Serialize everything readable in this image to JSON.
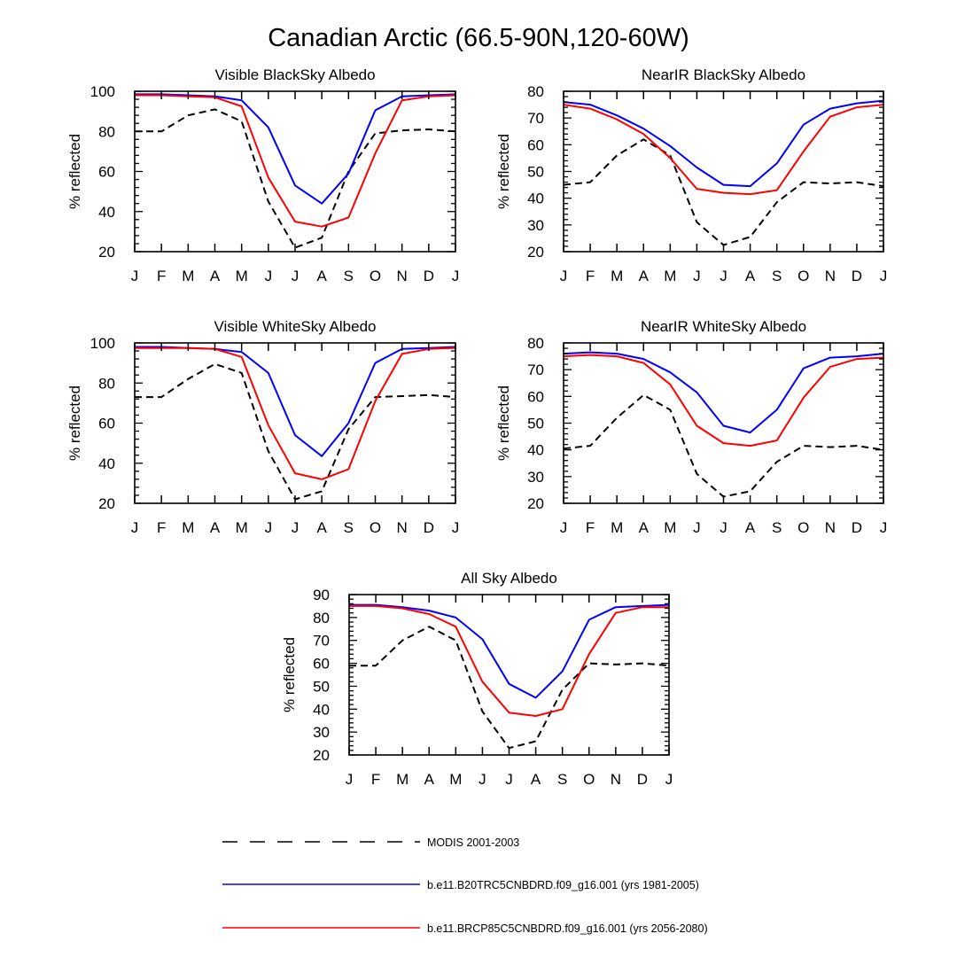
{
  "title": "Canadian Arctic (66.5-90N,120-60W)",
  "colors": {
    "modis": "#000000",
    "hist": "#0000ff",
    "rcp": "#ff0000"
  },
  "legend": [
    {
      "label": "MODIS 2001-2003",
      "style": "dashed",
      "color": "#000000"
    },
    {
      "label": "b.e11.B20TRC5CNBDRD.f09_g16.001 (yrs 1981-2005)",
      "style": "solid",
      "color": "#0000ff"
    },
    {
      "label": "b.e11.BRCP85C5CNBDRD.f09_g16.001 (yrs 2056-2080)",
      "style": "solid",
      "color": "#ff0000"
    }
  ],
  "chart_data": [
    {
      "type": "line",
      "title": "Visible BlackSky Albedo",
      "xlabel": "",
      "ylabel": "% reflected",
      "categories": [
        "J",
        "F",
        "M",
        "A",
        "M",
        "J",
        "J",
        "A",
        "S",
        "O",
        "N",
        "D",
        "J"
      ],
      "ylim": [
        20,
        100
      ],
      "yticks": [
        20,
        40,
        60,
        80,
        100
      ],
      "series": [
        {
          "name": "MODIS 2001-2003",
          "values": [
            80,
            80,
            88,
            91,
            85,
            45,
            22,
            27,
            60,
            79,
            80.5,
            81,
            80
          ]
        },
        {
          "name": "b.e11.B20TRC5CNBDRD.f09_g16.001 (yrs 1981-2005)",
          "values": [
            98.5,
            98.5,
            98,
            97.5,
            95.5,
            82,
            53,
            44,
            59,
            90.5,
            97.5,
            98,
            98.5
          ]
        },
        {
          "name": "b.e11.BRCP85C5CNBDRD.f09_g16.001 (yrs 2056-2080)",
          "values": [
            98,
            98,
            97.5,
            97,
            92.5,
            57,
            35,
            32.5,
            37,
            69,
            95.5,
            97.5,
            98
          ]
        }
      ]
    },
    {
      "type": "line",
      "title": "NearIR BlackSky Albedo",
      "xlabel": "",
      "ylabel": "% reflected",
      "categories": [
        "J",
        "F",
        "M",
        "A",
        "M",
        "J",
        "J",
        "A",
        "S",
        "O",
        "N",
        "D",
        "J"
      ],
      "ylim": [
        20,
        80
      ],
      "yticks": [
        20,
        30,
        40,
        50,
        60,
        70,
        80
      ],
      "series": [
        {
          "name": "MODIS 2001-2003",
          "values": [
            45,
            46,
            56,
            62,
            56,
            31,
            22.5,
            25.5,
            38.5,
            46,
            45.5,
            46,
            44.5
          ]
        },
        {
          "name": "b.e11.B20TRC5CNBDRD.f09_g16.001 (yrs 1981-2005)",
          "values": [
            76,
            75,
            71,
            66,
            59.5,
            51.5,
            45,
            44.5,
            53,
            67.5,
            73.5,
            75.5,
            76.5
          ]
        },
        {
          "name": "b.e11.BRCP85C5CNBDRD.f09_g16.001 (yrs 2056-2080)",
          "values": [
            75,
            73.5,
            69.5,
            64,
            55,
            43.5,
            42,
            41.5,
            43,
            57.5,
            70.5,
            74,
            75
          ]
        }
      ]
    },
    {
      "type": "line",
      "title": "Visible WhiteSky Albedo",
      "xlabel": "",
      "ylabel": "% reflected",
      "categories": [
        "J",
        "F",
        "M",
        "A",
        "M",
        "J",
        "J",
        "A",
        "S",
        "O",
        "N",
        "D",
        "J"
      ],
      "ylim": [
        20,
        100
      ],
      "yticks": [
        20,
        40,
        60,
        80,
        100
      ],
      "series": [
        {
          "name": "MODIS 2001-2003",
          "values": [
            73,
            73,
            82,
            89.5,
            85,
            46,
            22,
            26,
            57,
            73,
            73.5,
            74,
            73
          ]
        },
        {
          "name": "b.e11.B20TRC5CNBDRD.f09_g16.001 (yrs 1981-2005)",
          "values": [
            98,
            98,
            97.5,
            97,
            95.5,
            85,
            54,
            43.5,
            60,
            90,
            97,
            97.5,
            98
          ]
        },
        {
          "name": "b.e11.BRCP85C5CNBDRD.f09_g16.001 (yrs 2056-2080)",
          "values": [
            97.5,
            97.5,
            97.5,
            97,
            93,
            59,
            35,
            32,
            37,
            71,
            94.5,
            97,
            97.5
          ]
        }
      ]
    },
    {
      "type": "line",
      "title": "NearIR WhiteSky Albedo",
      "xlabel": "",
      "ylabel": "% reflected",
      "categories": [
        "J",
        "F",
        "M",
        "A",
        "M",
        "J",
        "J",
        "A",
        "S",
        "O",
        "N",
        "D",
        "J"
      ],
      "ylim": [
        20,
        80
      ],
      "yticks": [
        20,
        30,
        40,
        50,
        60,
        70,
        80
      ],
      "series": [
        {
          "name": "MODIS 2001-2003",
          "values": [
            40.5,
            41.5,
            52,
            60.5,
            55,
            31,
            22.5,
            24.5,
            35.5,
            41.5,
            41,
            41.5,
            40
          ]
        },
        {
          "name": "b.e11.B20TRC5CNBDRD.f09_g16.001 (yrs 1981-2005)",
          "values": [
            76,
            76.5,
            76,
            74,
            69,
            61.5,
            49,
            46.5,
            55,
            70.5,
            74.5,
            75,
            76
          ]
        },
        {
          "name": "b.e11.BRCP85C5CNBDRD.f09_g16.001 (yrs 2056-2080)",
          "values": [
            75,
            75.5,
            75,
            72.5,
            64.5,
            49,
            42.5,
            41.5,
            43.5,
            59.5,
            71,
            74,
            74.5
          ]
        }
      ]
    },
    {
      "type": "line",
      "title": "All Sky Albedo",
      "xlabel": "",
      "ylabel": "% reflected",
      "categories": [
        "J",
        "F",
        "M",
        "A",
        "M",
        "J",
        "J",
        "A",
        "S",
        "O",
        "N",
        "D",
        "J"
      ],
      "ylim": [
        20,
        90
      ],
      "yticks": [
        20,
        30,
        40,
        50,
        60,
        70,
        80,
        90
      ],
      "series": [
        {
          "name": "MODIS 2001-2003",
          "values": [
            59,
            59,
            70,
            76,
            70,
            39,
            23,
            26,
            48.5,
            60,
            59.5,
            60,
            59
          ]
        },
        {
          "name": "b.e11.B20TRC5CNBDRD.f09_g16.001 (yrs 1981-2005)",
          "values": [
            85.5,
            85.5,
            84.5,
            83,
            80,
            70.5,
            51,
            45,
            56.5,
            79,
            84.5,
            85,
            85.5
          ]
        },
        {
          "name": "b.e11.BRCP85C5CNBDRD.f09_g16.001 (yrs 2056-2080)",
          "values": [
            85,
            85,
            84,
            81.5,
            76,
            52,
            38.5,
            37,
            40,
            64,
            82,
            84.5,
            84.5
          ]
        }
      ]
    }
  ]
}
